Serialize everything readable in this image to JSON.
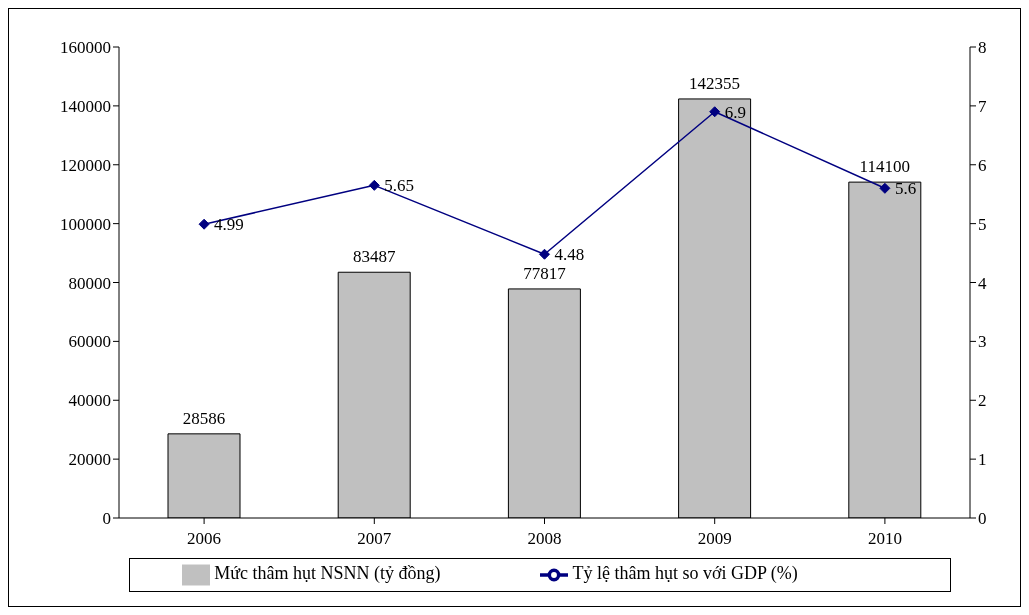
{
  "chart_data": {
    "type": "bar",
    "categories": [
      "2006",
      "2007",
      "2008",
      "2009",
      "2010"
    ],
    "series": [
      {
        "name": "Mức thâm hụt NSNN (tỷ đồng)",
        "color": "#c0c0c0",
        "values": [
          28586,
          83487,
          77817,
          142355,
          114100
        ]
      },
      {
        "name": "Tỷ lệ thâm hụt so với GDP (%)",
        "type": "line",
        "axis": "y2",
        "color": "#000080",
        "values": [
          4.99,
          5.65,
          4.48,
          6.9,
          5.6
        ]
      }
    ],
    "ylim": [
      0,
      160000
    ],
    "yticks": [
      0,
      20000,
      40000,
      60000,
      80000,
      100000,
      120000,
      140000,
      160000
    ],
    "y2lim": [
      0,
      8
    ],
    "y2ticks": [
      0,
      1,
      2,
      3,
      4,
      5,
      6,
      7,
      8
    ],
    "marker": "diamond",
    "legend": "bottom",
    "data_labels": true
  }
}
